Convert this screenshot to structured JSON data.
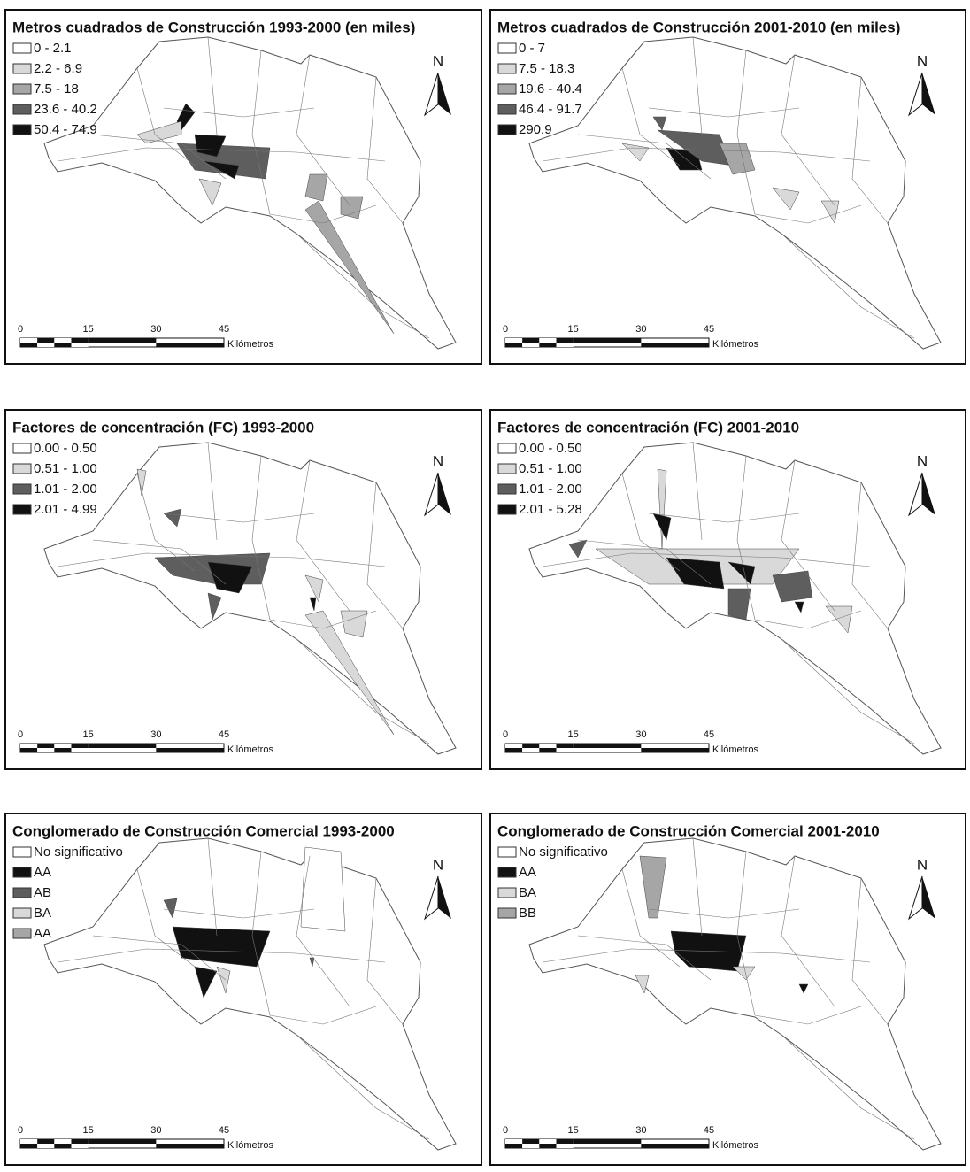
{
  "panels": [
    {
      "title": "Metros cuadrados de Construcción 1993-2000 (en miles)",
      "north": "N",
      "legend": [
        {
          "label": "0 - 2.1",
          "color": "#ffffff"
        },
        {
          "label": "2.2 - 6.9",
          "color": "#d9d9d9"
        },
        {
          "label": "7.5 - 18",
          "color": "#a6a6a6"
        },
        {
          "label": "23.6 - 40.2",
          "color": "#5e5e5e"
        },
        {
          "label": "50.4 - 74.9",
          "color": "#111111"
        }
      ],
      "scale": {
        "ticks": [
          0,
          15,
          30,
          45
        ],
        "unit": "Kilómetros"
      }
    },
    {
      "title": "Metros cuadrados de Construcción 2001-2010 (en miles)",
      "north": "N",
      "legend": [
        {
          "label": "0 - 7",
          "color": "#ffffff"
        },
        {
          "label": "7.5 - 18.3",
          "color": "#d9d9d9"
        },
        {
          "label": "19.6 - 40.4",
          "color": "#a6a6a6"
        },
        {
          "label": "46.4 - 91.7",
          "color": "#5e5e5e"
        },
        {
          "label": "290.9",
          "color": "#111111"
        }
      ],
      "scale": {
        "ticks": [
          0,
          15,
          30,
          45
        ],
        "unit": "Kilómetros"
      }
    },
    {
      "title": "Factores de concentración (FC) 1993-2000",
      "north": "N",
      "legend": [
        {
          "label": "0.00 - 0.50",
          "color": "#ffffff"
        },
        {
          "label": "0.51 - 1.00",
          "color": "#d9d9d9"
        },
        {
          "label": "1.01 - 2.00",
          "color": "#5e5e5e"
        },
        {
          "label": "2.01 - 4.99",
          "color": "#111111"
        }
      ],
      "scale": {
        "ticks": [
          0,
          15,
          30,
          45
        ],
        "unit": "Kilómetros"
      }
    },
    {
      "title": "Factores de concentración (FC) 2001-2010",
      "north": "N",
      "legend": [
        {
          "label": "0.00 - 0.50",
          "color": "#ffffff"
        },
        {
          "label": "0.51 - 1.00",
          "color": "#d9d9d9"
        },
        {
          "label": "1.01 - 2.00",
          "color": "#5e5e5e"
        },
        {
          "label": "2.01 - 5.28",
          "color": "#111111"
        }
      ],
      "scale": {
        "ticks": [
          0,
          15,
          30,
          45
        ],
        "unit": "Kilómetros"
      }
    },
    {
      "title": "Conglomerado de Construcción Comercial 1993-2000",
      "north": "N",
      "legend": [
        {
          "label": "No significativo",
          "color": "#ffffff"
        },
        {
          "label": "AA",
          "color": "#111111"
        },
        {
          "label": "AB",
          "color": "#5e5e5e"
        },
        {
          "label": "BA",
          "color": "#d9d9d9"
        },
        {
          "label": "AA",
          "color": "#a6a6a6"
        }
      ],
      "scale": {
        "ticks": [
          0,
          15,
          30,
          45
        ],
        "unit": "Kilómetros"
      }
    },
    {
      "title": "Conglomerado de Construcción Comercial 2001-2010",
      "north": "N",
      "legend": [
        {
          "label": "No significativo",
          "color": "#ffffff"
        },
        {
          "label": "AA",
          "color": "#111111"
        },
        {
          "label": "BA",
          "color": "#d9d9d9"
        },
        {
          "label": "BB",
          "color": "#a6a6a6"
        }
      ],
      "scale": {
        "ticks": [
          0,
          15,
          30,
          45
        ],
        "unit": "Kilómetros"
      }
    }
  ]
}
